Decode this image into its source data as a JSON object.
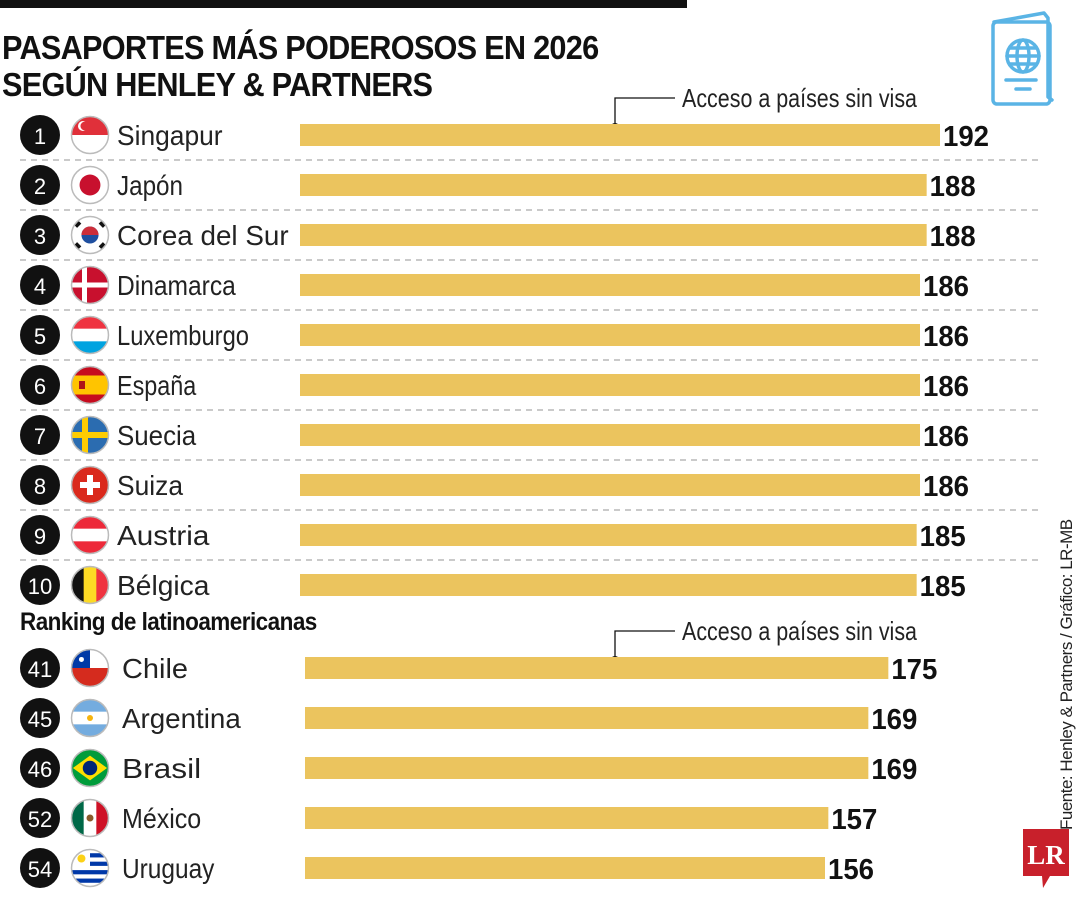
{
  "title_lines": [
    "PASAPORTES MÁS PODEROSOS EN 2026",
    "SEGÚN HENLEY & PARTNERS"
  ],
  "annotation": "Acceso a países sin visa",
  "subheading": "Ranking de latinoamericanas",
  "source": "Fuente: Henley & Partners / Gráfico: LR-MB",
  "logo": "LR",
  "header_icon": "passport-icon",
  "colors": {
    "bar": "#EBC45E",
    "rank_circle": "#111111",
    "icon": "#5AB4E5",
    "logo": "#C8202B"
  },
  "chart_data": [
    {
      "type": "bar",
      "orientation": "horizontal",
      "value_label": "Acceso a países sin visa",
      "xlim": [
        0,
        192
      ],
      "grid": false,
      "rows": [
        {
          "rank": "1",
          "country": "Singapur",
          "flag": "flag-singapore",
          "value": 192
        },
        {
          "rank": "2",
          "country": "Japón",
          "flag": "flag-japan",
          "value": 188
        },
        {
          "rank": "3",
          "country": "Corea del Sur",
          "flag": "flag-south-korea",
          "value": 188
        },
        {
          "rank": "4",
          "country": "Dinamarca",
          "flag": "flag-denmark",
          "value": 186
        },
        {
          "rank": "5",
          "country": "Luxemburgo",
          "flag": "flag-luxembourg",
          "value": 186
        },
        {
          "rank": "6",
          "country": "España",
          "flag": "flag-spain",
          "value": 186
        },
        {
          "rank": "7",
          "country": "Suecia",
          "flag": "flag-sweden",
          "value": 186
        },
        {
          "rank": "8",
          "country": "Suiza",
          "flag": "flag-switzerland",
          "value": 186
        },
        {
          "rank": "9",
          "country": "Austria",
          "flag": "flag-austria",
          "value": 185
        },
        {
          "rank": "10",
          "country": "Bélgica",
          "flag": "flag-belgium",
          "value": 185
        }
      ]
    },
    {
      "type": "bar",
      "orientation": "horizontal",
      "title": "Ranking de latinoamericanas",
      "value_label": "Acceso a países sin visa",
      "xlim": [
        0,
        175
      ],
      "grid": false,
      "rows": [
        {
          "rank": "41",
          "country": "Chile",
          "flag": "flag-chile",
          "value": 175
        },
        {
          "rank": "45",
          "country": "Argentina",
          "flag": "flag-argentina",
          "value": 169
        },
        {
          "rank": "46",
          "country": "Brasil",
          "flag": "flag-brazil",
          "value": 169
        },
        {
          "rank": "52",
          "country": "México",
          "flag": "flag-mexico",
          "value": 157
        },
        {
          "rank": "54",
          "country": "Uruguay",
          "flag": "flag-uruguay",
          "value": 156
        }
      ]
    }
  ]
}
